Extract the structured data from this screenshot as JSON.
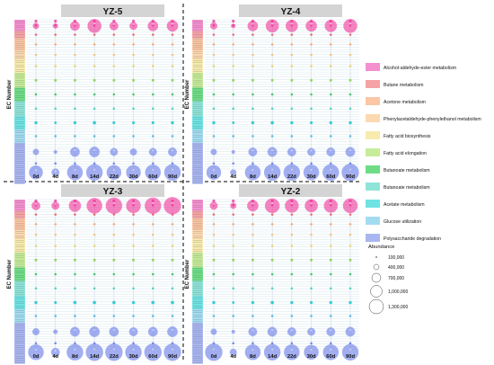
{
  "chart_data": {
    "type": "scatter",
    "subtype": "bubble-grid",
    "ylabel": "EC Number",
    "timepoints": [
      "0d",
      "4d",
      "8d",
      "14d",
      "22d",
      "30d",
      "60d",
      "90d"
    ],
    "legend_title": "Abundance",
    "size_legend": [
      {
        "label": "100,000",
        "value": 100000
      },
      {
        "label": "400,000",
        "value": 400000
      },
      {
        "label": "700,000",
        "value": 700000
      },
      {
        "label": "1,000,000",
        "value": 1000000
      },
      {
        "label": "1,300,000",
        "value": 1300000
      }
    ],
    "categories": [
      {
        "name": "Alcohol-aldehyde-ester metabolism",
        "color": "#f48fd0",
        "dot": "#f0339a"
      },
      {
        "name": "Butane metabolism",
        "color": "#f5a3a6",
        "dot": "#e8636a"
      },
      {
        "name": "Acetone metabolism",
        "color": "#fbc6a4",
        "dot": "#f5a36a"
      },
      {
        "name": "Phenylacetaldehyde-phenylethanol metabolism",
        "color": "#fcd9b0",
        "dot": "#f6bd79"
      },
      {
        "name": "Fatty acid biosynthesis",
        "color": "#f7ebad",
        "dot": "#e9d46a"
      },
      {
        "name": "Fatty acid elongation",
        "color": "#c6ec9a",
        "dot": "#93d35a"
      },
      {
        "name": "Butanoate metabolism",
        "color": "#6edc86",
        "dot": "#33c25a"
      },
      {
        "name": "Butanoate metabolism",
        "color": "#8fe4d9",
        "dot": "#3fcfbf"
      },
      {
        "name": "Acetate metabolism",
        "color": "#6fe3e4",
        "dot": "#22c8d2"
      },
      {
        "name": "Glucose utilization",
        "color": "#a3dcf1",
        "dot": "#4fb6e3"
      },
      {
        "name": "Polysaccharide degradation",
        "color": "#a9b6f1",
        "dot": "#6a7ee8"
      }
    ],
    "panels": [
      {
        "title": "YZ-5",
        "key_rows": {
          "alcohol": [
            0.35,
            0.3,
            0.55,
            0.8,
            0.5,
            0.45,
            0.6,
            0.65
          ],
          "fatty": [
            0.15,
            0.15,
            0.15,
            0.15,
            0.15,
            0.15,
            0.15,
            0.15
          ],
          "acetate": [
            0.18,
            0.12,
            0.18,
            0.2,
            0.16,
            0.15,
            0.16,
            0.18
          ],
          "poly_a": [
            0.35,
            0.2,
            0.55,
            0.6,
            0.45,
            0.4,
            0.45,
            0.5
          ],
          "poly_b": [
            0.8,
            0.45,
            0.9,
            0.95,
            0.85,
            0.85,
            0.9,
            0.95
          ]
        }
      },
      {
        "title": "YZ-4",
        "key_rows": {
          "alcohol": [
            0.4,
            0.25,
            0.6,
            0.75,
            0.7,
            0.65,
            0.7,
            0.8
          ],
          "fatty": [
            0.15,
            0.15,
            0.15,
            0.15,
            0.15,
            0.15,
            0.15,
            0.15
          ],
          "acetate": [
            0.18,
            0.12,
            0.18,
            0.2,
            0.18,
            0.16,
            0.18,
            0.18
          ],
          "poly_a": [
            0.35,
            0.2,
            0.5,
            0.55,
            0.5,
            0.45,
            0.5,
            0.55
          ],
          "poly_b": [
            0.85,
            0.35,
            0.9,
            0.95,
            0.95,
            0.9,
            0.95,
            1.0
          ]
        }
      },
      {
        "title": "YZ-3",
        "key_rows": {
          "alcohol": [
            0.5,
            0.45,
            0.7,
            0.9,
            0.95,
            0.85,
            0.95,
            1.0
          ],
          "fatty": [
            0.15,
            0.15,
            0.15,
            0.15,
            0.15,
            0.15,
            0.15,
            0.15
          ],
          "acetate": [
            0.18,
            0.15,
            0.2,
            0.2,
            0.2,
            0.18,
            0.2,
            0.2
          ],
          "poly_a": [
            0.4,
            0.25,
            0.55,
            0.6,
            0.55,
            0.5,
            0.55,
            0.6
          ],
          "poly_b": [
            0.9,
            0.5,
            0.95,
            1.0,
            1.0,
            0.95,
            1.0,
            1.0
          ]
        }
      },
      {
        "title": "YZ-2",
        "key_rows": {
          "alcohol": [
            0.45,
            0.35,
            0.65,
            0.85,
            0.8,
            0.75,
            0.8,
            0.85
          ],
          "fatty": [
            0.15,
            0.15,
            0.15,
            0.15,
            0.15,
            0.15,
            0.15,
            0.15
          ],
          "acetate": [
            0.18,
            0.12,
            0.18,
            0.2,
            0.18,
            0.16,
            0.18,
            0.18
          ],
          "poly_a": [
            0.35,
            0.2,
            0.5,
            0.55,
            0.5,
            0.45,
            0.5,
            0.55
          ],
          "poly_b": [
            1.0,
            0.4,
            0.9,
            0.95,
            0.9,
            0.85,
            0.9,
            0.95
          ]
        }
      }
    ]
  }
}
